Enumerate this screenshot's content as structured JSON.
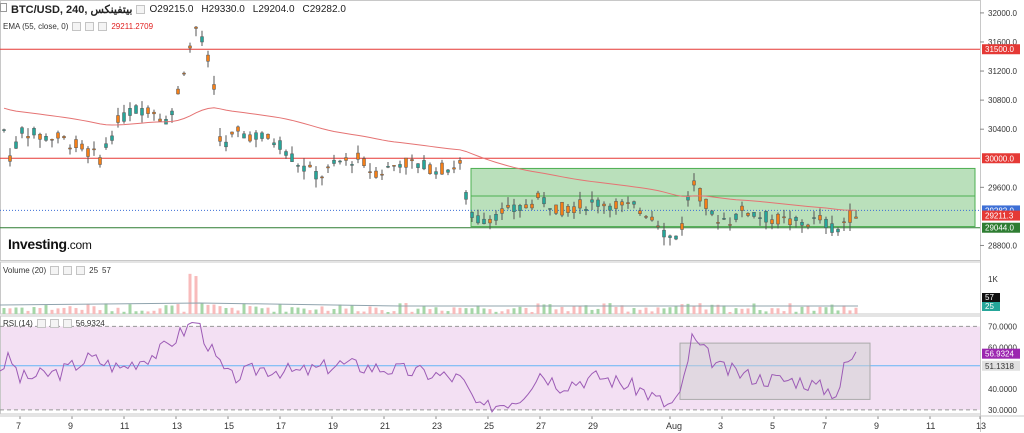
{
  "header": {
    "symbol": "BTC/USD, 240, بيتفينكس",
    "open": "O29215.0",
    "high": "H29330.0",
    "low": "L29204.0",
    "close": "C29282.0"
  },
  "ema": {
    "label": "EMA (55, close, 0)",
    "value": "29211.2709"
  },
  "volume": {
    "label": "Volume (20)",
    "v1": "25",
    "v2": "57"
  },
  "rsi": {
    "label": "RSI (14)",
    "value": "56.9324"
  },
  "logo": {
    "brand": "Investing",
    "domain": ".com"
  },
  "colors": {
    "up": "#26a69a",
    "down": "#f57f17",
    "ema": "#e57373",
    "rsi": "#9c5bb5",
    "box": "#4caf50",
    "hline": "#e53935"
  },
  "chart_data": {
    "type": "candlestick",
    "price_axis": {
      "ticks": [
        "32000.0",
        "31600.0",
        "31200.0",
        "30800.0",
        "30400.0",
        "29600.0",
        "28800.0"
      ],
      "range": [
        28600,
        32150
      ]
    },
    "x_ticks": [
      "7",
      "9",
      "11",
      "13",
      "15",
      "17",
      "19",
      "21",
      "23",
      "25",
      "27",
      "29",
      "Aug",
      "3",
      "5",
      "7",
      "9",
      "11",
      "13"
    ],
    "horizontal_levels": [
      {
        "price": 31500,
        "label": "31500.0",
        "color": "#e53935"
      },
      {
        "price": 30000,
        "label": "30000.0",
        "color": "#e53935"
      },
      {
        "price": 29044,
        "label": "29044.0",
        "color": "#2e7d32"
      }
    ],
    "price_labels": [
      {
        "price": 29282,
        "label": "29282.0",
        "color": "#3d6fd6"
      },
      {
        "price": 29211.3,
        "label": "29211.3",
        "color": "#e53935"
      }
    ],
    "volume_axis": {
      "ticks": [
        "1K"
      ],
      "labels": [
        "57",
        "25"
      ]
    },
    "rsi_axis": {
      "ticks": [
        "70.0000",
        "60.0000",
        "40.0000",
        "30.0000"
      ],
      "labels": [
        {
          "value": 56.9324,
          "label": "56.9324",
          "color": "#9c27b0"
        },
        {
          "value": 51.1318,
          "label": "51.1318",
          "color": "#e0e0e0"
        }
      ],
      "range": [
        28,
        75
      ]
    }
  }
}
